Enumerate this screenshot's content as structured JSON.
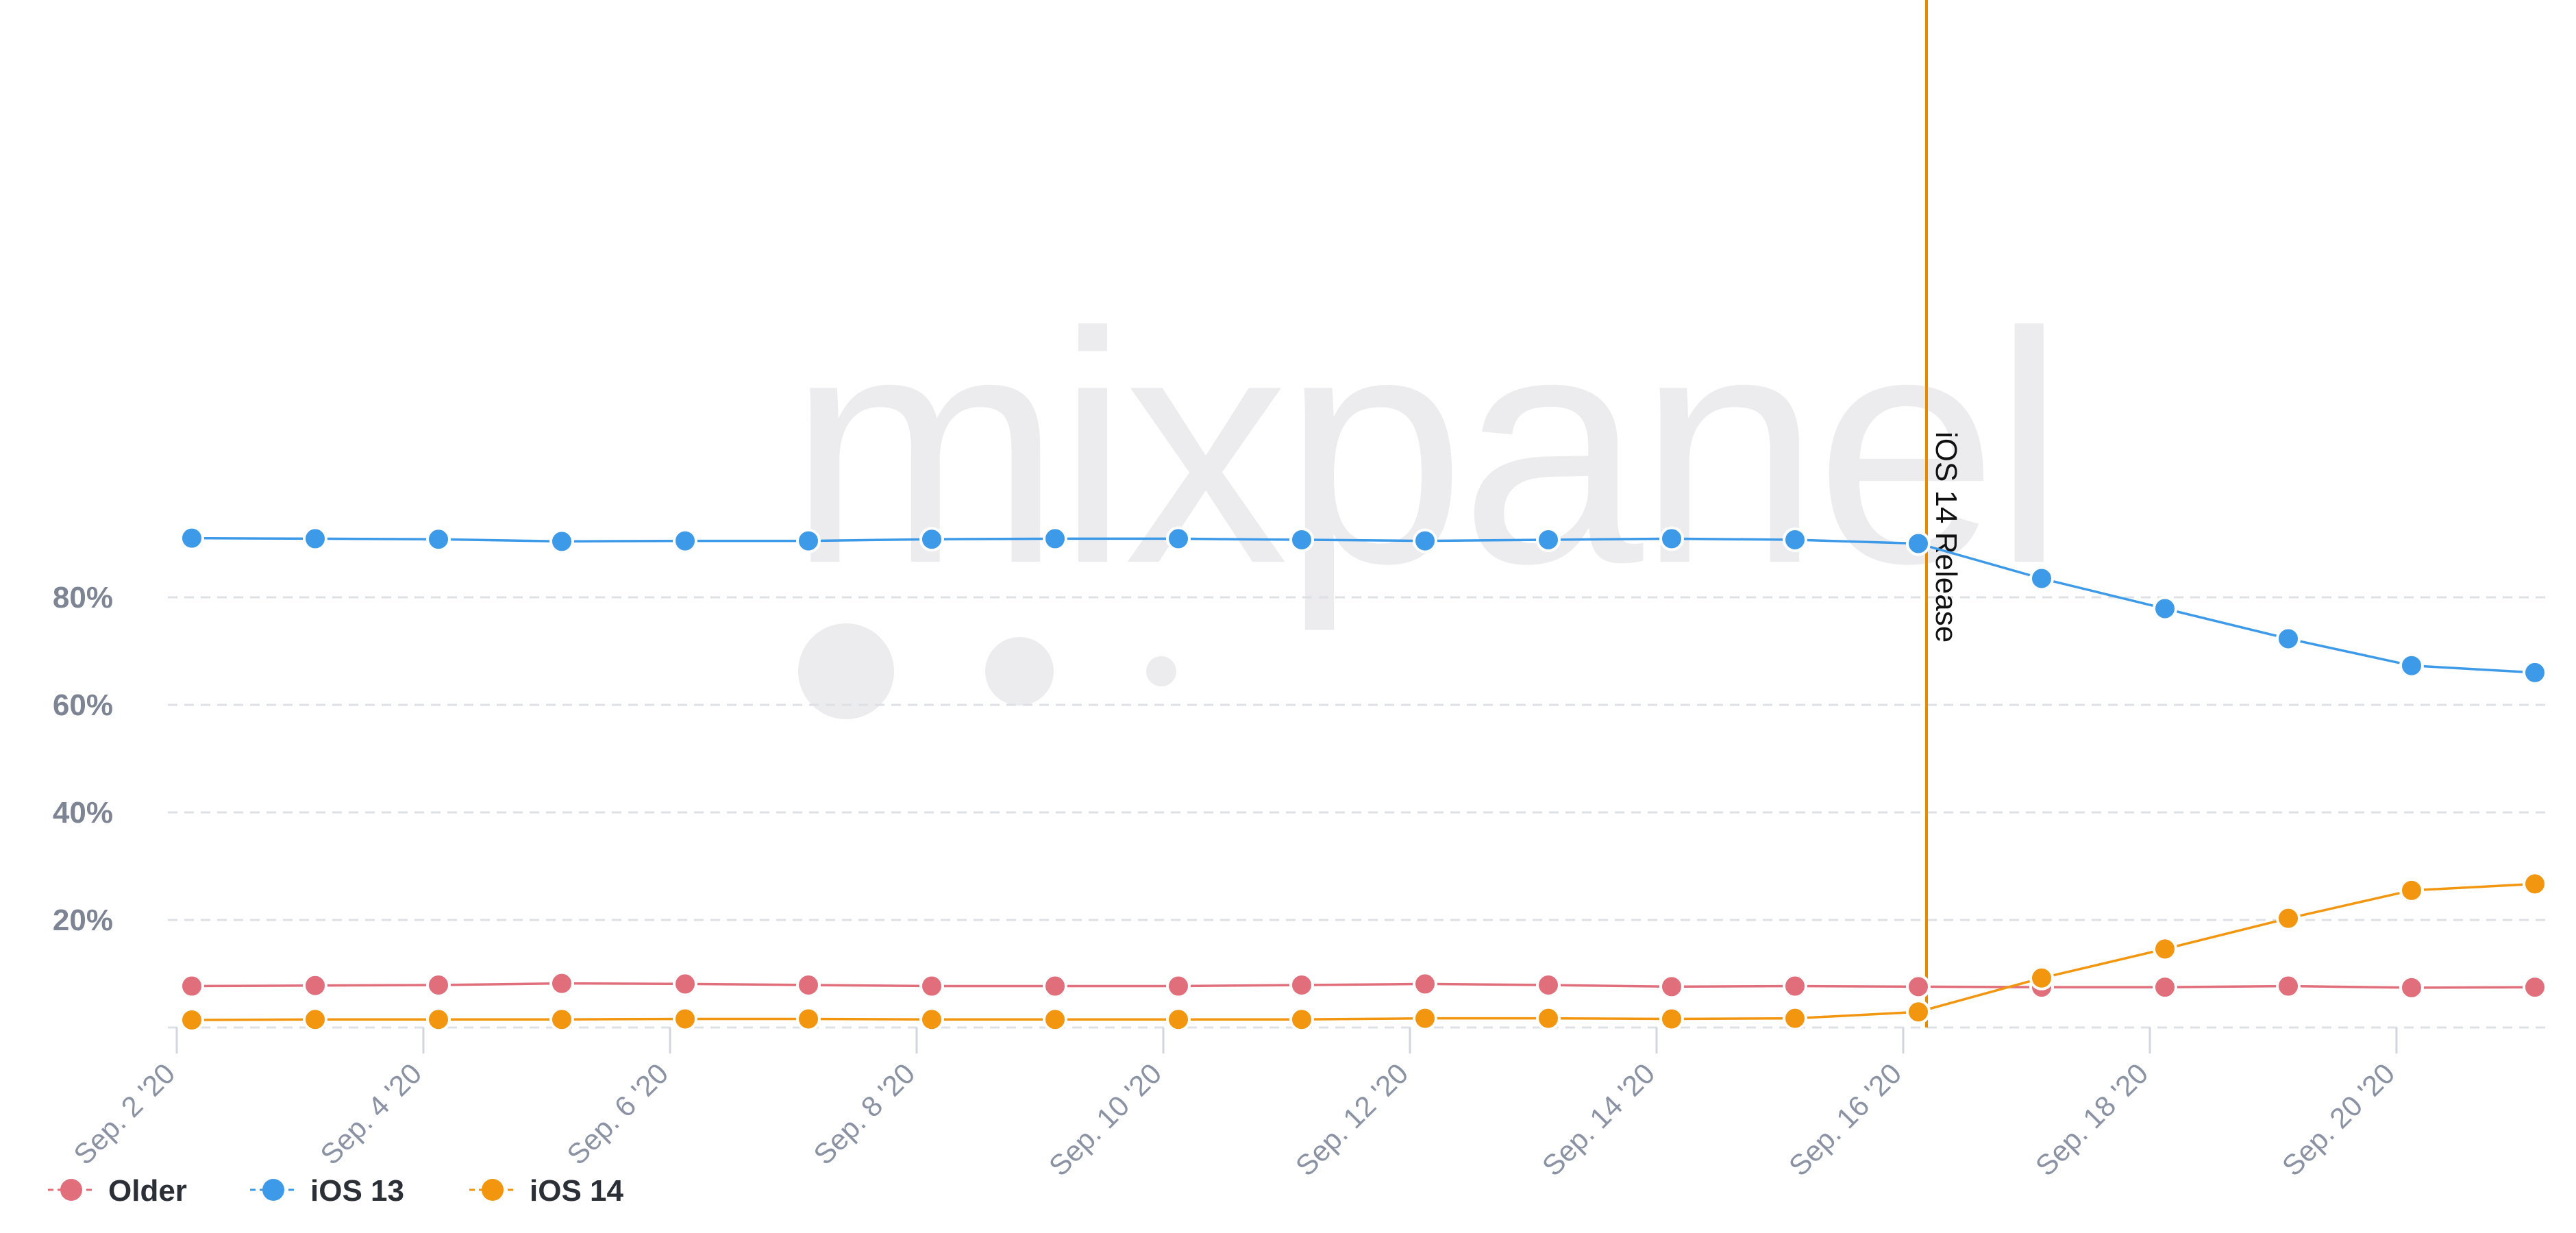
{
  "chart_data": {
    "type": "line",
    "x": [
      "Sep. 2 '20",
      "Sep. 3 '20",
      "Sep. 4 '20",
      "Sep. 5 '20",
      "Sep. 6 '20",
      "Sep. 7 '20",
      "Sep. 8 '20",
      "Sep. 9 '20",
      "Sep. 10 '20",
      "Sep. 11 '20",
      "Sep. 12 '20",
      "Sep. 13 '20",
      "Sep. 14 '20",
      "Sep. 15 '20",
      "Sep. 16 '20",
      "Sep. 17 '20",
      "Sep. 18 '20",
      "Sep. 19 '20",
      "Sep. 20 '20",
      "Sep. 21 '20"
    ],
    "x_tick_labels": [
      "Sep. 2 '20",
      "Sep. 4 '20",
      "Sep. 6 '20",
      "Sep. 8 '20",
      "Sep. 10 '20",
      "Sep. 12 '20",
      "Sep. 14 '20",
      "Sep. 16 '20",
      "Sep. 18 '20",
      "Sep. 20 '20"
    ],
    "y_tick_labels": [
      "20%",
      "40%",
      "60%",
      "80%"
    ],
    "ylim": [
      0,
      100
    ],
    "grid": true,
    "legend_position": "bottom-left",
    "series": [
      {
        "name": "Older",
        "color": "#e06f7b",
        "values": [
          7.7,
          7.8,
          7.9,
          8.2,
          8.1,
          7.9,
          7.7,
          7.7,
          7.7,
          7.9,
          8.1,
          7.9,
          7.6,
          7.7,
          7.6,
          7.5,
          7.5,
          7.7,
          7.4,
          7.5
        ]
      },
      {
        "name": "iOS 13",
        "color": "#3d9ae8",
        "values": [
          91.0,
          90.9,
          90.8,
          90.4,
          90.5,
          90.5,
          90.8,
          90.9,
          90.9,
          90.7,
          90.5,
          90.7,
          90.9,
          90.7,
          90.0,
          83.5,
          77.9,
          72.3,
          67.3,
          66.0
        ]
      },
      {
        "name": "iOS 14",
        "color": "#f3960f",
        "values": [
          1.4,
          1.5,
          1.5,
          1.5,
          1.6,
          1.6,
          1.5,
          1.5,
          1.5,
          1.5,
          1.7,
          1.7,
          1.6,
          1.7,
          2.9,
          9.2,
          14.6,
          20.3,
          25.5,
          26.7
        ]
      }
    ],
    "annotations": [
      {
        "label": "iOS 14 Release",
        "x": "Sep. 16 '20",
        "color": "#e68a00"
      }
    ]
  },
  "watermark": {
    "brand": "mixpanel",
    "color": "#ececef"
  }
}
